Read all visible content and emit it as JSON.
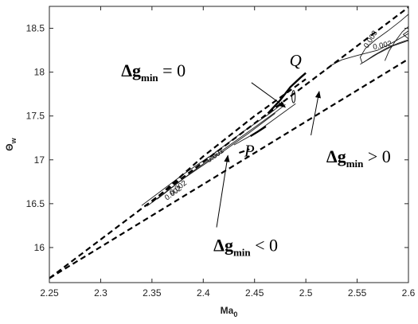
{
  "chart_data": {
    "type": "line",
    "xlabel": "Ma",
    "xlabel_subscript": "0",
    "ylabel": "Θ",
    "ylabel_subscript": "w",
    "xlim": [
      2.25,
      2.6
    ],
    "ylim": [
      15.6,
      18.75
    ],
    "x_ticks": [
      2.25,
      2.3,
      2.35,
      2.4,
      2.45,
      2.5,
      2.55,
      2.6
    ],
    "x_tick_labels": [
      "2.25",
      "2.3",
      "2.35",
      "2.4",
      "2.45",
      "2.5",
      "2.55",
      "2.6"
    ],
    "y_ticks": [
      16,
      16.5,
      17,
      17.5,
      18,
      18.5
    ],
    "y_tick_labels": [
      "16",
      "16.5",
      "17",
      "17.5",
      "18",
      "18.5"
    ],
    "grid": false,
    "boundaries": [
      {
        "style": "dashed",
        "points": [
          [
            2.25,
            15.65
          ],
          [
            2.6,
            18.74
          ]
        ]
      },
      {
        "style": "dashed",
        "points": [
          [
            2.25,
            15.65
          ],
          [
            2.6,
            18.15
          ]
        ]
      },
      {
        "style": "dashed",
        "points": [
          [
            2.35,
            16.52
          ],
          [
            2.4,
            17.04
          ],
          [
            2.45,
            17.5
          ],
          [
            2.5,
            17.92
          ]
        ]
      },
      {
        "style": "dashed",
        "points": [
          [
            2.435,
            17.08
          ],
          [
            2.445,
            17.12
          ]
        ]
      }
    ],
    "transition_curves": [
      {
        "style": "thick",
        "points": [
          [
            2.463,
            17.53
          ],
          [
            2.475,
            17.68
          ],
          [
            2.485,
            17.83
          ],
          [
            2.495,
            17.94
          ],
          [
            2.5,
            17.99
          ]
        ]
      },
      {
        "style": "thick",
        "points": [
          [
            2.446,
            17.27
          ],
          [
            2.453,
            17.32
          ],
          [
            2.461,
            17.38
          ]
        ]
      }
    ],
    "contours": [
      {
        "label": "0.001",
        "points": [
          [
            2.355,
            16.55
          ],
          [
            2.39,
            16.87
          ],
          [
            2.42,
            17.12
          ],
          [
            2.45,
            17.37
          ],
          [
            2.47,
            17.54
          ],
          [
            2.48,
            17.63
          ]
        ]
      },
      {
        "label": "0.002",
        "points": [
          [
            2.34,
            16.48
          ],
          [
            2.38,
            16.83
          ],
          [
            2.41,
            17.07
          ],
          [
            2.44,
            17.33
          ],
          [
            2.465,
            17.53
          ],
          [
            2.478,
            17.65
          ]
        ]
      },
      {
        "label": "",
        "points": [
          [
            2.345,
            16.47
          ],
          [
            2.38,
            16.78
          ],
          [
            2.415,
            17.06
          ],
          [
            2.445,
            17.31
          ],
          [
            2.47,
            17.53
          ]
        ]
      },
      {
        "label": "",
        "points": [
          [
            2.43,
            17.17
          ],
          [
            2.45,
            17.3
          ],
          [
            2.47,
            17.47
          ],
          [
            2.49,
            17.64
          ]
        ]
      },
      {
        "label": "0.002",
        "points": [
          [
            2.52,
            18.03
          ],
          [
            2.525,
            18.08
          ],
          [
            2.535,
            18.14
          ],
          [
            2.55,
            18.19
          ],
          [
            2.57,
            18.25
          ],
          [
            2.585,
            18.34
          ],
          [
            2.6,
            18.44
          ]
        ]
      },
      {
        "label": "0.003",
        "points": [
          [
            2.555,
            18.1
          ],
          [
            2.553,
            18.17
          ],
          [
            2.558,
            18.27
          ],
          [
            2.568,
            18.37
          ],
          [
            2.58,
            18.47
          ],
          [
            2.592,
            18.58
          ],
          [
            2.6,
            18.66
          ]
        ]
      },
      {
        "label": "",
        "points": [
          [
            2.577,
            18.13
          ],
          [
            2.581,
            18.24
          ],
          [
            2.587,
            18.35
          ],
          [
            2.594,
            18.46
          ],
          [
            2.6,
            18.52
          ]
        ]
      },
      {
        "label": "",
        "points": [
          [
            2.553,
            18.09
          ],
          [
            2.57,
            18.21
          ],
          [
            2.585,
            18.3
          ],
          [
            2.6,
            18.36
          ]
        ]
      },
      {
        "label": "",
        "points": [
          [
            2.556,
            18.11
          ],
          [
            2.566,
            18.19
          ],
          [
            2.578,
            18.27
          ],
          [
            2.59,
            18.33
          ],
          [
            2.6,
            18.37
          ]
        ]
      },
      {
        "label": "",
        "points": [
          [
            2.6,
            18.38
          ],
          [
            2.595,
            18.43
          ],
          [
            2.6,
            18.47
          ]
        ]
      }
    ],
    "ellipse": {
      "cx": 2.488,
      "cy": 17.72,
      "rx": 0.0016,
      "ry": 0.07
    },
    "point_labels": [
      {
        "text": "Q",
        "x": 2.49,
        "y": 18.07
      },
      {
        "text": "P",
        "x": 2.445,
        "y": 17.04
      }
    ],
    "annotations": [
      {
        "main": "Δg",
        "sub": "min",
        "rel": " = 0",
        "text_x": 2.32,
        "text_y": 17.95,
        "arrow_to": [
          2.48,
          17.6
        ]
      },
      {
        "main": "Δg",
        "sub": "min",
        "rel": " > 0",
        "text_x": 2.52,
        "text_y": 16.97,
        "arrow_to": [
          2.513,
          17.78
        ]
      },
      {
        "main": "Δg",
        "sub": "min",
        "rel": " < 0",
        "text_x": 2.41,
        "text_y": 15.96,
        "arrow_to": [
          2.424,
          17.05
        ]
      }
    ],
    "contour_label_positions": [
      {
        "text": "0.001",
        "x": 2.413,
        "y": 17.03,
        "angle": -36
      },
      {
        "text": "0.002",
        "x": 2.372,
        "y": 16.6,
        "angle": -36
      },
      {
        "text": "0.002",
        "x": 2.575,
        "y": 18.28,
        "angle": -12
      },
      {
        "text": "0.003",
        "x": 2.565,
        "y": 18.36,
        "angle": -58
      },
      {
        "text": "0.002",
        "x": 2.377,
        "y": 16.66,
        "angle": -38
      }
    ]
  }
}
